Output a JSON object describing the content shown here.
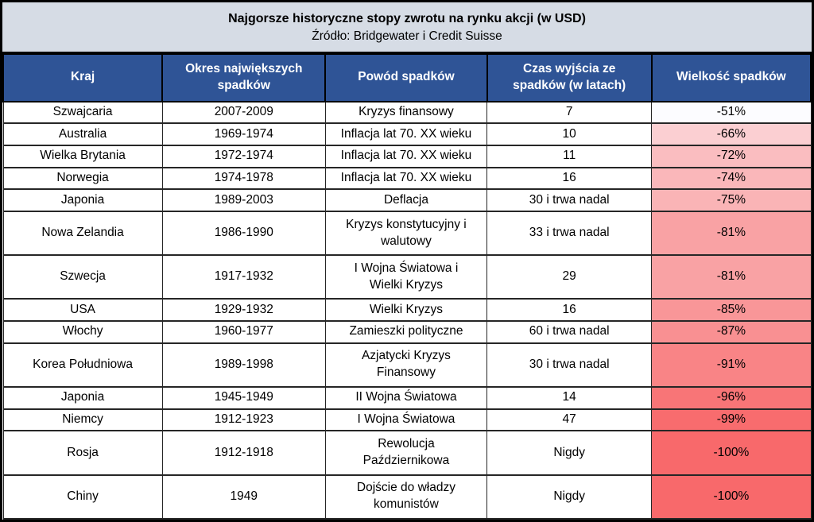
{
  "colors": {
    "title_bg": "#D6DCE5",
    "header_bg": "#2F5496",
    "header_text": "#FFFFFF",
    "border": "#000000",
    "gradient_low": "#FCFCFF",
    "gradient_high": "#F8696B"
  },
  "chart_data": {
    "type": "table",
    "title": "Najgorsze historyczne stopy zwrotu na rynku akcji (w USD)",
    "subtitle": "Źródło: Bridgewater i Credit Suisse",
    "columns": [
      "Kraj",
      "Okres największych\nspadków",
      "Powód spadków",
      "Czas wyjścia ze\nspadków (w latach)",
      "Wielkość spadków"
    ],
    "rows": [
      [
        "Szwajcaria",
        "2007-2009",
        "Kryzys finansowy",
        "7",
        "-51%"
      ],
      [
        "Australia",
        "1969-1974",
        "Inflacja lat 70. XX wieku",
        "10",
        "-66%"
      ],
      [
        "Wielka Brytania",
        "1972-1974",
        "Inflacja lat 70. XX wieku",
        "11",
        "-72%"
      ],
      [
        "Norwegia",
        "1974-1978",
        "Inflacja lat 70. XX wieku",
        "16",
        "-74%"
      ],
      [
        "Japonia",
        "1989-2003",
        "Deflacja",
        "30 i trwa nadal",
        "-75%"
      ],
      [
        "Nowa Zelandia",
        "1986-1990",
        "Kryzys konstytucyjny i\nwalutowy",
        "33 i trwa nadal",
        "-81%"
      ],
      [
        "Szwecja",
        "1917-1932",
        "I Wojna Światowa i\nWielki Kryzys",
        "29",
        "-81%"
      ],
      [
        "USA",
        "1929-1932",
        "Wielki Kryzys",
        "16",
        "-85%"
      ],
      [
        "Włochy",
        "1960-1977",
        "Zamieszki polityczne",
        "60 i trwa nadal",
        "-87%"
      ],
      [
        "Korea Południowa",
        "1989-1998",
        "Azjatycki Kryzys\nFinansowy",
        "30 i trwa nadal",
        "-91%"
      ],
      [
        "Japonia",
        "1945-1949",
        "II Wojna Światowa",
        "14",
        "-96%"
      ],
      [
        "Niemcy",
        "1912-1923",
        "I Wojna Światowa",
        "47",
        "-99%"
      ],
      [
        "Rosja",
        "1912-1918",
        "Rewolucja\nPaździernikowa",
        "Nigdy",
        "-100%"
      ],
      [
        "Chiny",
        "1949",
        "Dojście do władzy\nkomunistów",
        "Nigdy",
        "-100%"
      ]
    ],
    "row_colors": [
      "#FCFCFF",
      "#FBCFD2",
      "#FABDC0",
      "#FAB7BA",
      "#FAB4B6",
      "#F9A2A4",
      "#F9A2A4",
      "#F99698",
      "#F99092",
      "#F98486",
      "#F87577",
      "#F86C6E",
      "#F8696B",
      "#F8696B"
    ],
    "conditional_formatting": {
      "column": "Wielkość spadków",
      "scale": "white-to-red",
      "min_value": "-100%",
      "max_value": "-51%"
    },
    "layout": {
      "column_widths_pct": [
        19.7,
        20.2,
        20.0,
        20.4,
        19.7
      ]
    }
  }
}
